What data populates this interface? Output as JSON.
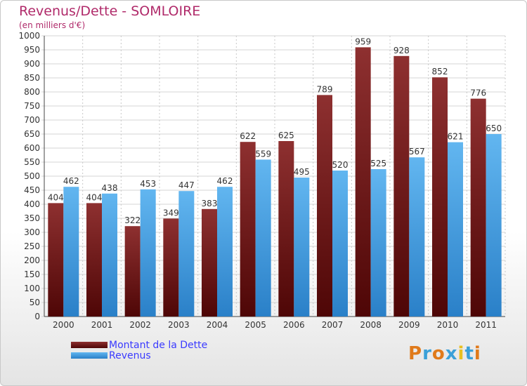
{
  "chart_data": {
    "type": "bar",
    "title": "Revenus/Dette - SOMLOIRE",
    "subtitle": "(en milliers d'€)",
    "categories": [
      "2000",
      "2001",
      "2002",
      "2003",
      "2004",
      "2005",
      "2006",
      "2007",
      "2008",
      "2009",
      "2010",
      "2011"
    ],
    "series": [
      {
        "name": "Montant de la Dette",
        "color": "#6b1414",
        "values": [
          404,
          404,
          322,
          349,
          383,
          622,
          625,
          789,
          959,
          928,
          852,
          776
        ]
      },
      {
        "name": "Revenus",
        "color": "#4ea8e8",
        "values": [
          462,
          438,
          453,
          447,
          462,
          559,
          495,
          520,
          525,
          567,
          621,
          650
        ]
      }
    ],
    "ylim": [
      0,
      1000
    ],
    "ystep": 50,
    "grid": true,
    "legend": "bottom-left"
  },
  "brand": {
    "text": "Proxiti"
  }
}
